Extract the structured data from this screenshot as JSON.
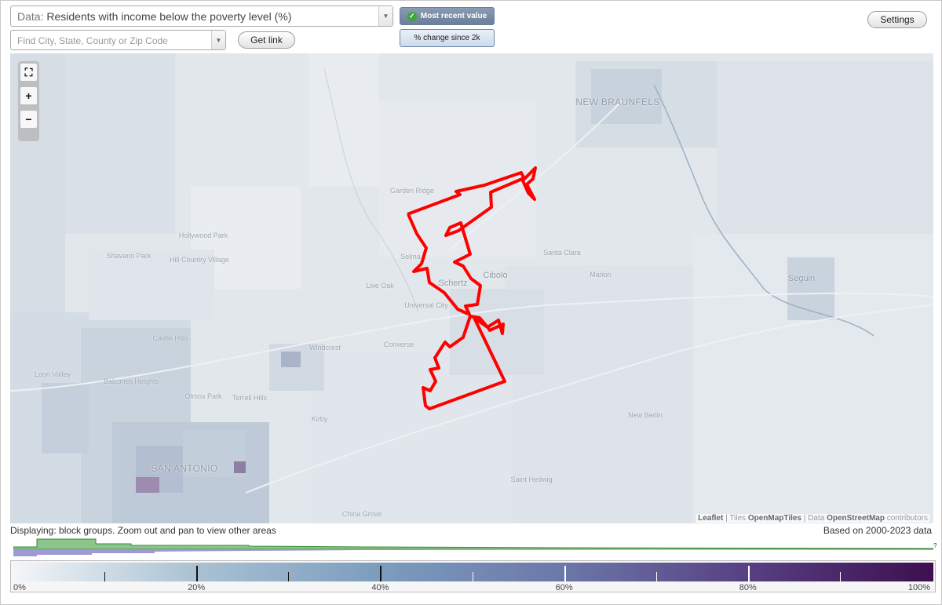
{
  "controls": {
    "data_label": "Data:",
    "data_value": "Residents with income below the poverty level (%)",
    "search_placeholder": "Find City, State, County or Zip Code",
    "get_link": "Get link",
    "mode_recent": "Most recent value",
    "mode_change": "% change since 2k",
    "settings": "Settings",
    "dropdown_icon": "chevron-down-icon"
  },
  "map": {
    "zoom_controls": {
      "fit": "fullscreen-icon",
      "zoom_in": "+",
      "zoom_out": "−"
    },
    "places": [
      {
        "name": "NEW BRAUNFELS",
        "cls": "big"
      },
      {
        "name": "Garden Ridge",
        "cls": ""
      },
      {
        "name": "Hollywood Park",
        "cls": ""
      },
      {
        "name": "Shavano Park",
        "cls": ""
      },
      {
        "name": "Hill Country Village",
        "cls": ""
      },
      {
        "name": "Selma",
        "cls": ""
      },
      {
        "name": "Live Oak",
        "cls": ""
      },
      {
        "name": "Schertz",
        "cls": "mid"
      },
      {
        "name": "Cibolo",
        "cls": "mid"
      },
      {
        "name": "Universal City",
        "cls": ""
      },
      {
        "name": "Santa Clara",
        "cls": ""
      },
      {
        "name": "Marion",
        "cls": ""
      },
      {
        "name": "Seguin",
        "cls": "mid"
      },
      {
        "name": "Castle Hills",
        "cls": ""
      },
      {
        "name": "Windcrest",
        "cls": ""
      },
      {
        "name": "Converse",
        "cls": ""
      },
      {
        "name": "Leon Valley",
        "cls": ""
      },
      {
        "name": "Balcones Heights",
        "cls": ""
      },
      {
        "name": "Olmos Park",
        "cls": ""
      },
      {
        "name": "Terrell Hills",
        "cls": ""
      },
      {
        "name": "Kirby",
        "cls": ""
      },
      {
        "name": "New Berlin",
        "cls": ""
      },
      {
        "name": "SAN ANTONIO",
        "cls": "big"
      },
      {
        "name": "Saint Hedwig",
        "cls": ""
      },
      {
        "name": "China Grove",
        "cls": ""
      }
    ],
    "attribution": {
      "leaflet": "Leaflet",
      "tiles_prefix": "| Tiles",
      "tiles": "OpenMapTiles",
      "data_prefix": "| Data",
      "data": "OpenStreetMap",
      "suffix": "contributors"
    },
    "highlight_color": "#ff0000"
  },
  "status": {
    "displaying": "Displaying: block groups. Zoom out and pan to view other areas",
    "based_on": "Based on 2000-2023 data",
    "histogram_q": "?"
  },
  "legend": {
    "ticks": [
      "0%",
      "20%",
      "40%",
      "60%",
      "80%",
      "100%"
    ],
    "major_values": [
      20,
      40,
      60,
      80
    ],
    "minor_values": [
      10,
      30,
      50,
      70,
      90
    ],
    "colors": [
      "#f4f6f8",
      "#a9c1d3",
      "#7c9cbe",
      "#6b77a8",
      "#573f83",
      "#3d0f4e"
    ]
  }
}
